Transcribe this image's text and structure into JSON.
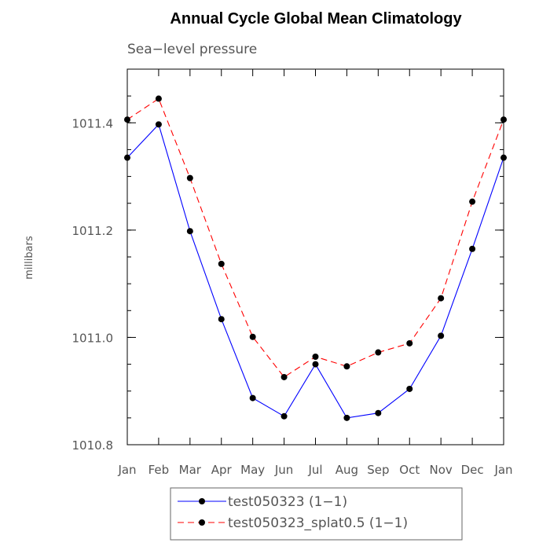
{
  "chart_data": {
    "type": "line",
    "title": "Annual Cycle Global Mean Climatology",
    "subtitle": "Sea−level pressure",
    "xlabel": "",
    "ylabel": "millibars",
    "categories": [
      "Jan",
      "Feb",
      "Mar",
      "Apr",
      "May",
      "Jun",
      "Jul",
      "Aug",
      "Sep",
      "Oct",
      "Nov",
      "Dec",
      "Jan"
    ],
    "ylim": [
      1010.8,
      1011.5
    ],
    "yticks": [
      1010.8,
      1011.0,
      1011.2,
      1011.4
    ],
    "ytick_labels": [
      "1010.8",
      "1011.0",
      "1011.2",
      "1011.4"
    ],
    "series": [
      {
        "name": "test050323 (1−1)",
        "color": "#0000ff",
        "style": "solid",
        "marker": "filled-circle",
        "values": [
          1011.335,
          1011.397,
          1011.198,
          1011.034,
          1010.887,
          1010.853,
          1010.95,
          1010.85,
          1010.859,
          1010.904,
          1011.003,
          1011.165,
          1011.335
        ]
      },
      {
        "name": "test050323_splat0.5 (1−1)",
        "color": "#ff0000",
        "style": "dashed",
        "marker": "filled-circle",
        "values": [
          1011.406,
          1011.445,
          1011.297,
          1011.137,
          1011.001,
          1010.926,
          1010.964,
          1010.946,
          1010.972,
          1010.989,
          1011.073,
          1011.253,
          1011.406
        ]
      }
    ]
  }
}
